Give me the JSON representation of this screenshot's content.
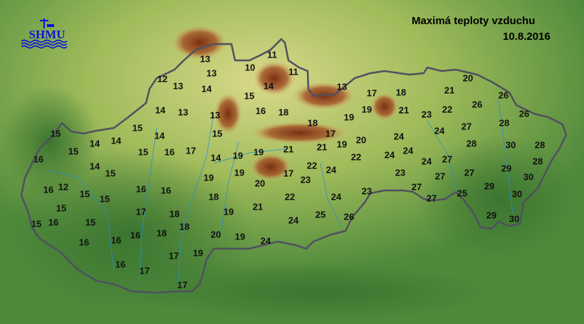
{
  "title": "Maximá teploty vzduchu",
  "date": "10.8.2016",
  "logo": {
    "text": "SHMU",
    "color": "#0a14d8"
  },
  "colors": {
    "lowland": "#3f7a34",
    "hills": "#c8d27a",
    "mountains": "#8a3a1a",
    "border": "#505060",
    "rivers": "#2a90c8"
  },
  "stations": [
    13,
    11,
    13,
    10,
    11,
    12,
    13,
    14,
    14,
    15,
    13,
    17,
    18,
    20,
    21,
    26,
    26,
    19,
    21,
    23,
    22,
    26,
    19,
    18,
    27,
    28,
    24,
    17,
    20,
    24,
    19,
    21,
    21,
    28,
    30,
    28,
    22,
    24,
    24,
    24,
    27,
    28,
    22,
    24,
    29,
    17,
    23,
    23,
    27,
    27,
    30,
    27,
    29,
    22,
    24,
    23,
    27,
    25,
    30,
    25,
    26,
    24,
    29,
    30,
    16,
    18,
    14,
    13,
    13,
    15,
    15,
    15,
    14,
    14,
    14,
    15,
    16,
    15,
    16,
    17,
    14,
    19,
    19,
    14,
    15,
    19,
    19,
    20,
    16,
    12,
    15,
    15,
    16,
    16,
    18,
    15,
    17,
    18,
    19,
    21,
    15,
    16,
    15,
    18,
    16,
    18,
    16,
    16,
    20,
    19,
    24,
    17,
    19,
    16,
    17,
    17
  ]
}
